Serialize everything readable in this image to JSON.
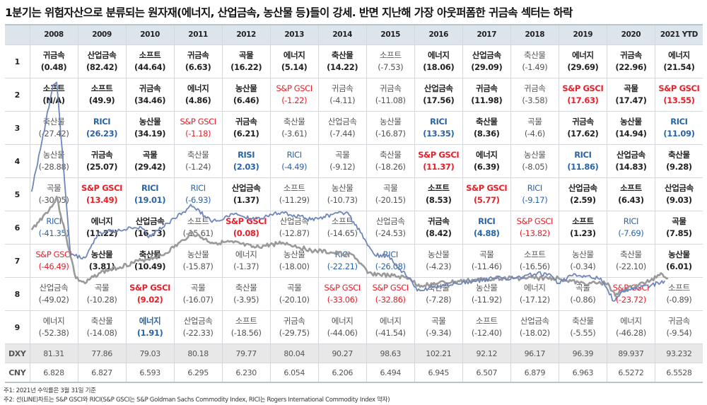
{
  "title": "1분기는 위험자산으로 분류되는 원자재(에너지, 산업금속, 농산물 등)들이 강세. 반면 지난해 가장 아웃퍼폼한 귀금속 섹터는 하락",
  "table": {
    "years": [
      "2008",
      "2009",
      "2010",
      "2011",
      "2012",
      "2013",
      "2014",
      "2015",
      "2016",
      "2017",
      "2018",
      "2019",
      "2020",
      "2021 YTD"
    ],
    "ranks": [
      "1",
      "2",
      "3",
      "4",
      "5",
      "6",
      "7",
      "8",
      "9"
    ],
    "columns": [
      [
        [
          "귀금속",
          "(0.48)",
          "b",
          ""
        ],
        [
          "소프트",
          "(N/A)",
          "b",
          ""
        ],
        [
          "축산물",
          "(-27.42)",
          "n",
          ""
        ],
        [
          "농산물",
          "(-28.88)",
          "n",
          ""
        ],
        [
          "곡물",
          "(-30.05)",
          "n",
          ""
        ],
        [
          "RICI",
          "(-41.35)",
          "n",
          "blue"
        ],
        [
          "S&P GSCI",
          "(-46.49)",
          "n",
          "red"
        ],
        [
          "산업금속",
          "(-49.02)",
          "n",
          ""
        ],
        [
          "에너지",
          "(-52.38)",
          "n",
          ""
        ]
      ],
      [
        [
          "산업금속",
          "(82.42)",
          "b",
          ""
        ],
        [
          "소프트",
          "(49.9)",
          "b",
          ""
        ],
        [
          "RICI",
          "(26.23)",
          "b",
          "blue"
        ],
        [
          "귀금속",
          "(25.07)",
          "b",
          ""
        ],
        [
          "S&P GSCI",
          "(13.49)",
          "b",
          "red"
        ],
        [
          "에너지",
          "(11.22)",
          "b",
          ""
        ],
        [
          "농산물",
          "(3.81)",
          "b",
          ""
        ],
        [
          "곡물",
          "(-10.28)",
          "n",
          ""
        ],
        [
          "축산물",
          "(-14.08)",
          "n",
          ""
        ]
      ],
      [
        [
          "소프트",
          "(44.64)",
          "b",
          ""
        ],
        [
          "귀금속",
          "(34.46)",
          "b",
          ""
        ],
        [
          "농산물",
          "(34.19)",
          "b",
          ""
        ],
        [
          "곡물",
          "(29.42)",
          "b",
          ""
        ],
        [
          "RICI",
          "(19.01)",
          "b",
          "blue"
        ],
        [
          "산업금속",
          "(16.73)",
          "b",
          ""
        ],
        [
          "축산물",
          "(10.49)",
          "b",
          ""
        ],
        [
          "S&P GSCI",
          "(9.02)",
          "b",
          "red"
        ],
        [
          "에너지",
          "(1.91)",
          "b",
          "blue"
        ]
      ],
      [
        [
          "귀금속",
          "(6.63)",
          "b",
          ""
        ],
        [
          "에너지",
          "(4.86)",
          "b",
          ""
        ],
        [
          "S&P GSCI",
          "(-1.18)",
          "n",
          "red"
        ],
        [
          "축산물",
          "(-1.24)",
          "n",
          ""
        ],
        [
          "RICI",
          "(-6.93)",
          "n",
          "blue"
        ],
        [
          "소프트",
          "(-15.61)",
          "n",
          ""
        ],
        [
          "농산물",
          "(-15.87)",
          "n",
          ""
        ],
        [
          "곡물",
          "(-16.07)",
          "n",
          ""
        ],
        [
          "산업금속",
          "(-22.33)",
          "n",
          ""
        ]
      ],
      [
        [
          "곡물",
          "(16.22)",
          "b",
          ""
        ],
        [
          "농산물",
          "(6.46)",
          "b",
          ""
        ],
        [
          "귀금속",
          "(6.21)",
          "b",
          ""
        ],
        [
          "RISI",
          "(2.03)",
          "b",
          "blue"
        ],
        [
          "산업금속",
          "(1.37)",
          "b",
          ""
        ],
        [
          "S&P GSCI",
          "(0.08)",
          "b",
          "red"
        ],
        [
          "에너지",
          "(-1.37)",
          "n",
          ""
        ],
        [
          "축산물",
          "(-3.95)",
          "n",
          ""
        ],
        [
          "소프트",
          "(-18.56)",
          "n",
          ""
        ]
      ],
      [
        [
          "에너지",
          "(5.14)",
          "b",
          ""
        ],
        [
          "S&P GSCI",
          "(-1.22)",
          "n",
          "red"
        ],
        [
          "축산물",
          "(-3.61)",
          "n",
          ""
        ],
        [
          "RICI",
          "(-4.49)",
          "n",
          "blue"
        ],
        [
          "소프트",
          "(-11.29)",
          "n",
          ""
        ],
        [
          "산업금속",
          "(-12.87)",
          "n",
          ""
        ],
        [
          "농산물",
          "(-18.00)",
          "n",
          ""
        ],
        [
          "곡물",
          "(-20.10)",
          "n",
          ""
        ],
        [
          "귀금속",
          "(-29.75)",
          "n",
          ""
        ]
      ],
      [
        [
          "축산물",
          "(14.22)",
          "b",
          ""
        ],
        [
          "귀금속",
          "(-4.11)",
          "n",
          ""
        ],
        [
          "산업금속",
          "(-7.44)",
          "n",
          ""
        ],
        [
          "곡물",
          "(-9.12)",
          "n",
          ""
        ],
        [
          "농산물",
          "(-10.73)",
          "n",
          ""
        ],
        [
          "소프트",
          "(-14.65)",
          "n",
          ""
        ],
        [
          "RICI",
          "(-22.21)",
          "n",
          "blue"
        ],
        [
          "S&P GSCI",
          "(-33.06)",
          "n",
          "red"
        ],
        [
          "에너지",
          "(-44.06)",
          "n",
          ""
        ]
      ],
      [
        [
          "소프트",
          "(-7.53)",
          "n",
          ""
        ],
        [
          "귀금속",
          "(-11.08)",
          "n",
          ""
        ],
        [
          "농산물",
          "(-16.87)",
          "n",
          ""
        ],
        [
          "축산물",
          "(-18.26)",
          "n",
          ""
        ],
        [
          "곡물",
          "(-20.15)",
          "n",
          ""
        ],
        [
          "산업금속",
          "(-24.53)",
          "n",
          ""
        ],
        [
          "RICI",
          "(-26.08)",
          "n",
          "blue"
        ],
        [
          "S&P GSCI",
          "(-32.86)",
          "n",
          "red"
        ],
        [
          "에너지",
          "(-41.54)",
          "n",
          ""
        ]
      ],
      [
        [
          "에너지",
          "(18.06)",
          "b",
          ""
        ],
        [
          "산업금속",
          "(17.56)",
          "b",
          ""
        ],
        [
          "RICI",
          "(13.35)",
          "b",
          "blue"
        ],
        [
          "S&P GSCI",
          "(11.37)",
          "b",
          "red"
        ],
        [
          "소프트",
          "(8.53)",
          "b",
          ""
        ],
        [
          "귀금속",
          "(8.42)",
          "b",
          ""
        ],
        [
          "농산물",
          "(-4.23)",
          "n",
          ""
        ],
        [
          "축산물",
          "(-7.28)",
          "n",
          ""
        ],
        [
          "곡물",
          "(-9.34)",
          "n",
          ""
        ]
      ],
      [
        [
          "산업금속",
          "(29.09)",
          "b",
          ""
        ],
        [
          "귀금속",
          "(11.98)",
          "b",
          ""
        ],
        [
          "축산물",
          "(8.36)",
          "b",
          ""
        ],
        [
          "에너지",
          "(6.39)",
          "b",
          ""
        ],
        [
          "S&P GSCI",
          "(5.77)",
          "b",
          "red"
        ],
        [
          "RICI",
          "(4.88)",
          "b",
          "blue"
        ],
        [
          "곡물",
          "(-11.46)",
          "n",
          ""
        ],
        [
          "농산물",
          "(-11.92)",
          "n",
          ""
        ],
        [
          "소프트",
          "(-12.40)",
          "n",
          ""
        ]
      ],
      [
        [
          "축산물",
          "(-1.49)",
          "n",
          ""
        ],
        [
          "귀금속",
          "(-3.58)",
          "n",
          ""
        ],
        [
          "곡물",
          "(-4.6)",
          "n",
          ""
        ],
        [
          "농산물",
          "(-8.05)",
          "n",
          ""
        ],
        [
          "RICI",
          "(-9.17)",
          "n",
          "blue"
        ],
        [
          "S&P GSCI",
          "(-13.82)",
          "n",
          "red"
        ],
        [
          "소프트",
          "(-16.56)",
          "n",
          ""
        ],
        [
          "에너지",
          "(-17.12)",
          "n",
          ""
        ],
        [
          "산업금속",
          "(-18.02)",
          "n",
          ""
        ]
      ],
      [
        [
          "에너지",
          "(29.69)",
          "b",
          ""
        ],
        [
          "S&P GSCI",
          "(17.63)",
          "b",
          "red"
        ],
        [
          "귀금속",
          "(17.62)",
          "b",
          ""
        ],
        [
          "RICI",
          "(11.86)",
          "b",
          "blue"
        ],
        [
          "산업금속",
          "(2.59)",
          "b",
          ""
        ],
        [
          "소프트",
          "(1.23)",
          "b",
          ""
        ],
        [
          "농산물",
          "(-0.34)",
          "n",
          ""
        ],
        [
          "곡물",
          "(-0.86)",
          "n",
          ""
        ],
        [
          "축산물",
          "(-5.55)",
          "n",
          ""
        ]
      ],
      [
        [
          "귀금속",
          "(22.96)",
          "b",
          ""
        ],
        [
          "곡물",
          "(17.47)",
          "b",
          ""
        ],
        [
          "농산물",
          "(14.94)",
          "b",
          ""
        ],
        [
          "산업금속",
          "(14.83)",
          "b",
          ""
        ],
        [
          "소프트",
          "(6.43)",
          "b",
          ""
        ],
        [
          "RICI",
          "(-7.69)",
          "n",
          "blue"
        ],
        [
          "축산물",
          "(-22.10)",
          "n",
          ""
        ],
        [
          "S&P GSCI",
          "(-23.72)",
          "n",
          "red"
        ],
        [
          "에너지",
          "(-46.28)",
          "n",
          ""
        ]
      ],
      [
        [
          "에너지",
          "(21.54)",
          "b",
          ""
        ],
        [
          "S&P GSCI",
          "(13.55)",
          "b",
          "red"
        ],
        [
          "RICI",
          "(11.09)",
          "b",
          "blue"
        ],
        [
          "축산물",
          "(9.28)",
          "b",
          ""
        ],
        [
          "산업금속",
          "(9.03)",
          "b",
          ""
        ],
        [
          "곡물",
          "(7.85)",
          "b",
          ""
        ],
        [
          "농산물",
          "(6.01)",
          "b",
          ""
        ],
        [
          "소프트",
          "(-0.89)",
          "n",
          ""
        ],
        [
          "귀금속",
          "(-9.54)",
          "n",
          ""
        ]
      ]
    ],
    "dxy_label": "DXY",
    "dxy": [
      "81.31",
      "77.86",
      "79.03",
      "80.18",
      "79.77",
      "80.04",
      "90.27",
      "98.63",
      "102.21",
      "92.12",
      "96.17",
      "96.39",
      "89.937",
      "93.232"
    ],
    "cny_label": "CNY",
    "cny": [
      "6.828",
      "6.827",
      "6.593",
      "6.295",
      "6.230",
      "6.054",
      "6.206",
      "6.494",
      "6.945",
      "6.507",
      "6.879",
      "6.963",
      "6.5272",
      "6.5528"
    ]
  },
  "colors": {
    "sp_gsci": "#e8202a",
    "rici": "#2a64a8",
    "line_rici": "#6f86b8",
    "line_gsci": "#9a9a9a",
    "header_bg": "#dce4ec"
  },
  "chart_data": {
    "type": "line",
    "title": "",
    "xlabel": "",
    "ylabel": "",
    "x_range": [
      2008,
      2021.3
    ],
    "grid": false,
    "legend": "none",
    "series": [
      {
        "name": "RICI",
        "color": "#6f86b8",
        "points": [
          [
            2008.04,
            58
          ],
          [
            2008.49,
            100
          ],
          [
            2008.56,
            101
          ],
          [
            2008.85,
            33
          ],
          [
            2009.15,
            32
          ],
          [
            2009.44,
            42
          ],
          [
            2010.32,
            44
          ],
          [
            2010.47,
            40
          ],
          [
            2011.21,
            50
          ],
          [
            2011.35,
            53
          ],
          [
            2011.79,
            46
          ],
          [
            2012.24,
            49
          ],
          [
            2012.68,
            47
          ],
          [
            2013.26,
            50
          ],
          [
            2013.85,
            47
          ],
          [
            2014.29,
            49
          ],
          [
            2014.59,
            50
          ],
          [
            2014.88,
            42
          ],
          [
            2015.18,
            33
          ],
          [
            2015.47,
            33
          ],
          [
            2015.62,
            29
          ],
          [
            2015.91,
            24
          ],
          [
            2016.06,
            19
          ],
          [
            2016.5,
            21
          ],
          [
            2017.68,
            24
          ],
          [
            2018.12,
            24
          ],
          [
            2018.56,
            26
          ],
          [
            2018.85,
            25
          ],
          [
            2019.0,
            22
          ],
          [
            2019.29,
            25
          ],
          [
            2019.88,
            24
          ],
          [
            2020.15,
            15
          ],
          [
            2020.32,
            19
          ],
          [
            2020.91,
            21
          ],
          [
            2021.21,
            23
          ]
        ]
      },
      {
        "name": "S&P GSCI",
        "color": "#9a9a9a",
        "points": [
          [
            2008.04,
            43
          ],
          [
            2008.49,
            53
          ],
          [
            2008.56,
            56
          ],
          [
            2008.96,
            24
          ],
          [
            2009.15,
            22
          ],
          [
            2009.44,
            26
          ],
          [
            2010.32,
            31
          ],
          [
            2010.76,
            33
          ],
          [
            2011.21,
            39
          ],
          [
            2011.35,
            42
          ],
          [
            2011.79,
            38
          ],
          [
            2012.24,
            38
          ],
          [
            2012.68,
            36
          ],
          [
            2013.26,
            38
          ],
          [
            2013.85,
            35
          ],
          [
            2014.29,
            34
          ],
          [
            2014.74,
            33
          ],
          [
            2015.03,
            26
          ],
          [
            2015.47,
            25
          ],
          [
            2015.91,
            24
          ],
          [
            2016.06,
            21
          ],
          [
            2016.5,
            22
          ],
          [
            2017.68,
            24
          ],
          [
            2018.56,
            24
          ],
          [
            2019.0,
            24
          ],
          [
            2019.44,
            22
          ],
          [
            2020.03,
            22
          ],
          [
            2020.18,
            17
          ],
          [
            2020.32,
            19
          ],
          [
            2020.91,
            23
          ],
          [
            2021.13,
            26
          ],
          [
            2021.28,
            24
          ]
        ]
      }
    ]
  },
  "footnotes": [
    "주1: 2021년 수익률은 3월 31일 기준",
    "주2: 선(LINE)차트는 S&P GSCI와 RICI(S&P GSCI는 S&P Goldman Sachs Commodity Index, RICI는 Rogers International Commodity Index 약자)"
  ]
}
